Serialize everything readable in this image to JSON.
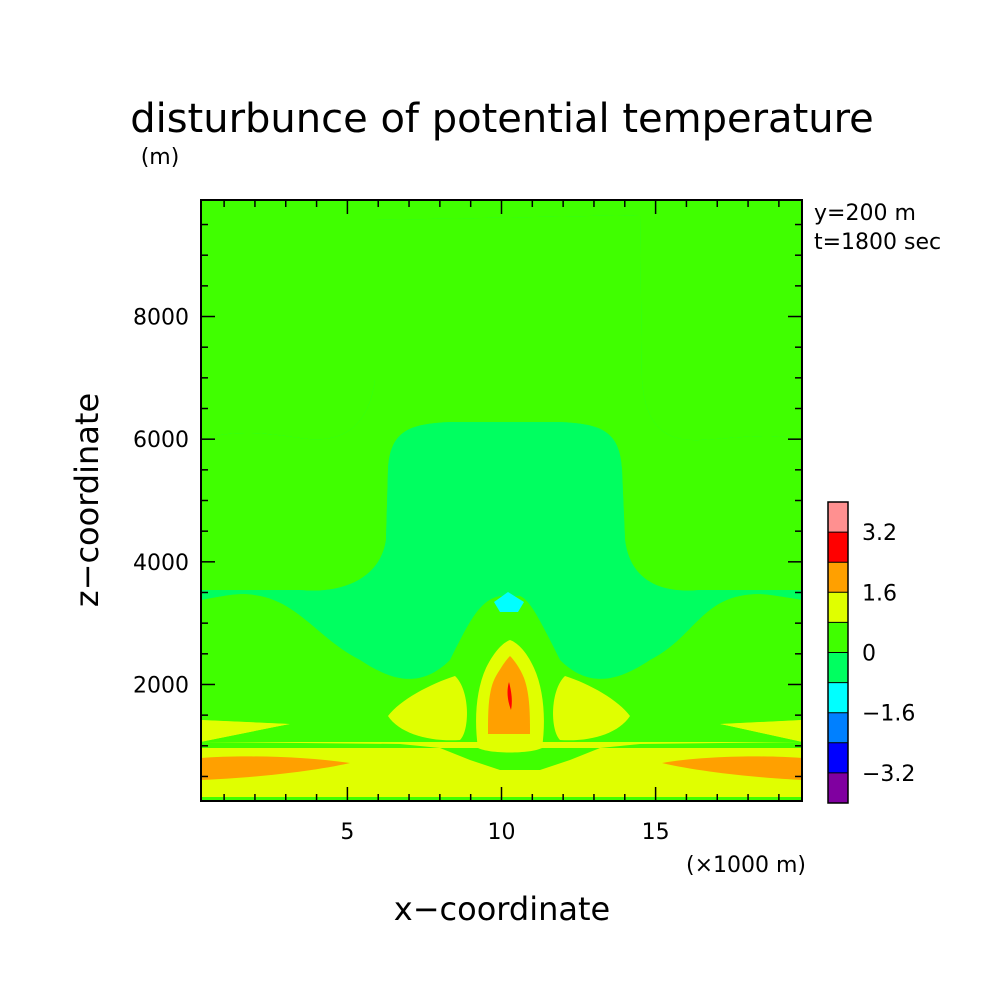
{
  "chart_data": {
    "type": "heatmap",
    "subtype": "filled-contour",
    "title": "disturbunce of potential temperature",
    "xlabel": "x−coordinate",
    "ylabel": "z−coordinate",
    "y_unit_label": "(m)",
    "x_unit_label": "(×1000 m)",
    "annotations": [
      "y=200 m",
      "t=1800 sec"
    ],
    "xlim": [
      0.25,
      19.75
    ],
    "ylim": [
      100,
      9900
    ],
    "xticks": [
      5,
      10,
      15
    ],
    "xtick_labels": [
      "5",
      "10",
      "15"
    ],
    "yticks": [
      2000,
      4000,
      6000,
      8000
    ],
    "ytick_labels": [
      "2000",
      "4000",
      "6000",
      "8000"
    ],
    "colorbar": {
      "levels": [
        -4.0,
        -3.2,
        -2.4,
        -1.6,
        -0.8,
        0.0,
        0.8,
        1.6,
        2.4,
        3.2,
        4.0
      ],
      "colors": [
        "#8000a0",
        "#0000ff",
        "#0080ff",
        "#00ffff",
        "#00ff60",
        "#40ff00",
        "#e0ff00",
        "#ffa000",
        "#ff0000",
        "#ff9090"
      ],
      "tick_labels": [
        "3.2",
        "1.6",
        "0",
        "−1.6",
        "−3.2"
      ],
      "tick_values": [
        3.2,
        1.6,
        0.0,
        -1.6,
        -3.2
      ]
    },
    "contour_regions": [
      {
        "level": "-0.8 to 0",
        "color": "#00ff60",
        "x": [
          0.25,
          19.75
        ],
        "z": [
          1900,
          6000
        ],
        "description": "band"
      },
      {
        "level": "0 to 0.8",
        "color": "#40ff00",
        "x": [
          0.25,
          19.75
        ],
        "z": [
          6000,
          9900
        ],
        "description": "upper background and central column"
      },
      {
        "level": "0.8 to 1.6",
        "color": "#e0ff00",
        "x": [
          0.25,
          19.75
        ],
        "z": [
          100,
          1400
        ],
        "description": "lower layer"
      },
      {
        "level": "1.6 to 2.4",
        "color": "#ffa000",
        "x": [
          0.25,
          5.0
        ],
        "z": [
          350,
          700
        ],
        "description": "left low-level maximum"
      },
      {
        "level": "1.6 to 2.4",
        "color": "#ffa000",
        "x": [
          15.5,
          19.75
        ],
        "z": [
          350,
          700
        ],
        "description": "right low-level maximum"
      },
      {
        "level": "1.6 to 2.4",
        "color": "#ffa000",
        "x": [
          9.6,
          11.0
        ],
        "z": [
          1200,
          2150
        ],
        "description": "central maximum"
      },
      {
        "level": "2.4 to 3.2",
        "color": "#ff0000",
        "x": [
          10.1,
          10.35
        ],
        "z": [
          1550,
          2000
        ],
        "description": "central peak"
      },
      {
        "level": "-1.6 to -0.8",
        "color": "#00ffff",
        "x": [
          9.85,
          10.65
        ],
        "z": [
          3000,
          3500
        ],
        "description": "cold anomaly aloft"
      }
    ]
  }
}
